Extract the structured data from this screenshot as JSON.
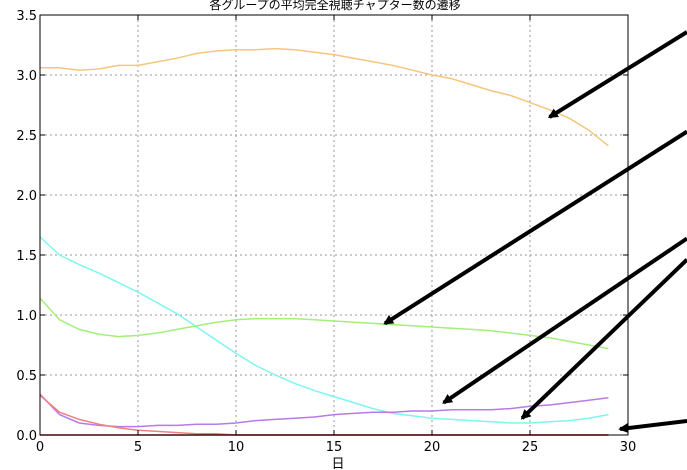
{
  "chart_data": {
    "type": "line",
    "title": "各グループの平均完全視聴チャプター数の遷移",
    "xlabel": "日",
    "ylabel": "",
    "xlim": [
      0,
      30
    ],
    "ylim": [
      0.0,
      3.5
    ],
    "x_ticks": [
      "0",
      "5",
      "10",
      "15",
      "20",
      "25",
      "30"
    ],
    "y_ticks": [
      "0.0",
      "0.5",
      "1.0",
      "1.5",
      "2.0",
      "2.5",
      "3.0",
      "3.5"
    ],
    "grid": true,
    "legend": "none",
    "series": [
      {
        "color": "#f5c77e",
        "x": [
          0,
          1,
          2,
          3,
          4,
          5,
          6,
          7,
          8,
          9,
          10,
          11,
          12,
          13,
          14,
          15,
          16,
          17,
          18,
          19,
          20,
          21,
          22,
          23,
          24,
          25,
          26,
          27,
          28,
          29
        ],
        "values": [
          3.06,
          3.06,
          3.04,
          3.05,
          3.08,
          3.08,
          3.11,
          3.14,
          3.18,
          3.2,
          3.21,
          3.21,
          3.22,
          3.21,
          3.19,
          3.17,
          3.14,
          3.11,
          3.08,
          3.04,
          3.0,
          2.97,
          2.92,
          2.87,
          2.83,
          2.77,
          2.71,
          2.64,
          2.54,
          2.41
        ]
      },
      {
        "color": "#7ef5f0",
        "x": [
          0,
          1,
          2,
          3,
          4,
          5,
          6,
          7,
          8,
          9,
          10,
          11,
          12,
          13,
          14,
          15,
          16,
          17,
          18,
          19,
          20,
          21,
          22,
          23,
          24,
          25,
          26,
          27,
          28,
          29
        ],
        "values": [
          1.65,
          1.5,
          1.42,
          1.35,
          1.27,
          1.19,
          1.1,
          1.01,
          0.9,
          0.79,
          0.68,
          0.58,
          0.5,
          0.43,
          0.37,
          0.32,
          0.27,
          0.22,
          0.18,
          0.16,
          0.14,
          0.13,
          0.12,
          0.11,
          0.1,
          0.1,
          0.11,
          0.12,
          0.14,
          0.17
        ]
      },
      {
        "color": "#a4ee7a",
        "x": [
          0,
          1,
          2,
          3,
          4,
          5,
          6,
          7,
          8,
          9,
          10,
          11,
          12,
          13,
          14,
          15,
          16,
          17,
          18,
          19,
          20,
          21,
          22,
          23,
          24,
          25,
          26,
          27,
          28,
          29
        ],
        "values": [
          1.14,
          0.96,
          0.88,
          0.84,
          0.82,
          0.83,
          0.85,
          0.88,
          0.91,
          0.94,
          0.96,
          0.97,
          0.97,
          0.97,
          0.96,
          0.95,
          0.94,
          0.93,
          0.92,
          0.91,
          0.9,
          0.89,
          0.88,
          0.87,
          0.85,
          0.83,
          0.81,
          0.78,
          0.75,
          0.72
        ]
      },
      {
        "color": "#b77be8",
        "x": [
          0,
          1,
          2,
          3,
          4,
          5,
          6,
          7,
          8,
          9,
          10,
          11,
          12,
          13,
          14,
          15,
          16,
          17,
          18,
          19,
          20,
          21,
          22,
          23,
          24,
          25,
          26,
          27,
          28,
          29
        ],
        "values": [
          0.34,
          0.17,
          0.1,
          0.08,
          0.07,
          0.07,
          0.08,
          0.08,
          0.09,
          0.09,
          0.1,
          0.12,
          0.13,
          0.14,
          0.15,
          0.17,
          0.18,
          0.19,
          0.19,
          0.2,
          0.2,
          0.21,
          0.21,
          0.21,
          0.22,
          0.24,
          0.25,
          0.27,
          0.29,
          0.31
        ]
      },
      {
        "color": "#f08080",
        "x": [
          0,
          1,
          2,
          3,
          4,
          5,
          6,
          7,
          8,
          9,
          10,
          11,
          12,
          13,
          14,
          15,
          16,
          17,
          18,
          19,
          20,
          21,
          22,
          23,
          24,
          25,
          26,
          27,
          28,
          29
        ],
        "values": [
          0.33,
          0.19,
          0.13,
          0.09,
          0.06,
          0.04,
          0.03,
          0.02,
          0.01,
          0.01,
          0.0,
          0.0,
          0.0,
          0.0,
          0.0,
          0.0,
          0.0,
          0.0,
          0.0,
          0.0,
          0.0,
          0.0,
          0.0,
          0.0,
          0.0,
          0.0,
          0.0,
          0.0,
          0.0,
          0.0
        ]
      },
      {
        "color": "#c01818",
        "x": [
          0,
          1,
          2,
          3,
          4,
          5,
          6,
          7,
          8,
          9,
          10,
          11,
          12,
          13,
          14,
          15,
          16,
          17,
          18,
          19,
          20,
          21,
          22,
          23,
          24,
          25,
          26,
          27,
          28,
          29
        ],
        "values": [
          0.0,
          0.0,
          0.0,
          0.0,
          0.0,
          0.0,
          0.0,
          0.0,
          0.0,
          0.0,
          0.0,
          0.0,
          0.0,
          0.0,
          0.0,
          0.0,
          0.0,
          0.0,
          0.0,
          0.0,
          0.0,
          0.0,
          0.0,
          0.0,
          0.0,
          0.0,
          0.0,
          0.0,
          0.0,
          0.0
        ]
      }
    ],
    "annotations": [
      {
        "type": "arrow",
        "points_to": [
          26,
          2.65
        ]
      },
      {
        "type": "arrow",
        "points_to": [
          17.6,
          0.93
        ]
      },
      {
        "type": "arrow",
        "points_to": [
          20.6,
          0.27
        ]
      },
      {
        "type": "arrow",
        "points_to": [
          24.6,
          0.14
        ]
      },
      {
        "type": "arrow",
        "points_to": [
          29.6,
          0.05
        ]
      }
    ]
  }
}
